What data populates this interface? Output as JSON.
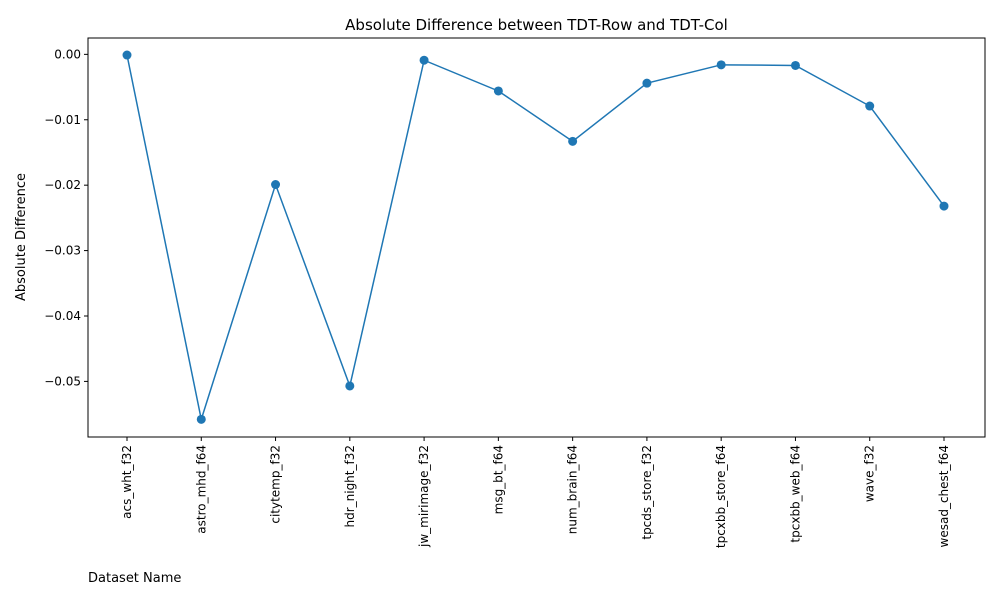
{
  "chart_data": {
    "type": "line",
    "title": "Absolute Difference between TDT-Row and TDT-Col",
    "xlabel": "Dataset Name",
    "ylabel": "Absolute Difference",
    "categories": [
      "acs_wht_f32",
      "astro_mhd_f64",
      "citytemp_f32",
      "hdr_night_f32",
      "jw_mirimage_f32",
      "msg_bt_f64",
      "num_brain_f64",
      "tpcds_store_f32",
      "tpcxbb_store_f64",
      "tpcxbb_web_f64",
      "wave_f32",
      "wesad_chest_f64"
    ],
    "series": [
      {
        "values": [
          -0.0001,
          -0.0558,
          -0.0199,
          -0.0507,
          -0.0009,
          -0.0056,
          -0.0133,
          -0.0044,
          -0.0016,
          -0.0017,
          -0.0079,
          -0.0232
        ],
        "color": "#1f77b4",
        "marker": "circle"
      }
    ],
    "yticks": [
      0.0,
      -0.01,
      -0.02,
      -0.03,
      -0.04,
      -0.05
    ],
    "ytick_labels": [
      "0.00",
      "−0.01",
      "−0.02",
      "−0.03",
      "−0.04",
      "−0.05"
    ],
    "ylim": [
      -0.0585,
      0.0025
    ],
    "grid": false,
    "legend": "none"
  }
}
